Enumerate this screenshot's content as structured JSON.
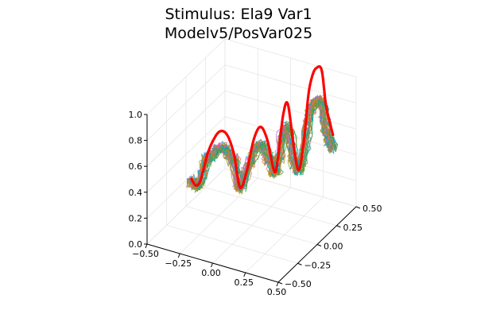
{
  "chart_data": {
    "type": "line",
    "projection": "3d",
    "title": [
      "Stimulus: Ela9 Var1",
      "Modelv5/PosVar025"
    ],
    "xlabel": "",
    "ylabel": "",
    "zlabel": "",
    "xlim": [
      -0.5,
      0.5
    ],
    "ylim": [
      -0.5,
      0.5
    ],
    "zlim": [
      0,
      1
    ],
    "xticks": [
      {
        "value": -0.5,
        "label": "−0.50"
      },
      {
        "value": -0.25,
        "label": "−0.25"
      },
      {
        "value": 0,
        "label": "0.00"
      },
      {
        "value": 0.25,
        "label": "0.25"
      },
      {
        "value": 0.5,
        "label": "0.50"
      }
    ],
    "yticks": [
      {
        "value": -0.5,
        "label": "−0.50"
      },
      {
        "value": -0.25,
        "label": "−0.25"
      },
      {
        "value": 0,
        "label": "0.00"
      },
      {
        "value": 0.25,
        "label": "0.25"
      },
      {
        "value": 0.5,
        "label": "0.50"
      }
    ],
    "zticks": [
      {
        "value": 0,
        "label": "0.0"
      },
      {
        "value": 0.2,
        "label": "0.2"
      },
      {
        "value": 0.4,
        "label": "0.4"
      },
      {
        "value": 0.6,
        "label": "0.6"
      },
      {
        "value": 0.8,
        "label": "0.8"
      },
      {
        "value": 1.0,
        "label": "1.0"
      }
    ],
    "grid": true,
    "legend": "none",
    "stimulus": {
      "color": "#ff0000",
      "x": [
        -0.4,
        -0.37,
        -0.34,
        -0.3,
        -0.26,
        -0.22,
        -0.18,
        -0.14,
        -0.1,
        -0.06,
        -0.02,
        0.02,
        0.06,
        0.1,
        0.12,
        0.15,
        0.18,
        0.21,
        0.24,
        0.27,
        0.29,
        0.31,
        0.33,
        0.35,
        0.37,
        0.39,
        0.4
      ],
      "y": [
        -0.1,
        -0.09,
        -0.08,
        -0.06,
        -0.04,
        -0.03,
        -0.01,
        0.01,
        0.02,
        0.04,
        0.06,
        0.08,
        0.1,
        0.12,
        0.13,
        0.15,
        0.16,
        0.18,
        0.2,
        0.22,
        0.24,
        0.26,
        0.28,
        0.31,
        0.33,
        0.35,
        0.37
      ],
      "z": [
        0.3,
        0.25,
        0.3,
        0.5,
        0.62,
        0.68,
        0.65,
        0.5,
        0.25,
        0.38,
        0.62,
        0.72,
        0.62,
        0.38,
        0.45,
        0.8,
        0.9,
        0.6,
        0.38,
        0.62,
        0.95,
        1.1,
        1.15,
        1.12,
        0.85,
        0.7,
        0.6
      ]
    },
    "model_series": {
      "count": 30,
      "colors": [
        "#009af9",
        "#e26f46",
        "#3da44d",
        "#c271d2",
        "#ac8d18",
        "#00a9ad",
        "#ed5e93",
        "#c68225",
        "#00a98d",
        "#8e971e"
      ]
    }
  }
}
